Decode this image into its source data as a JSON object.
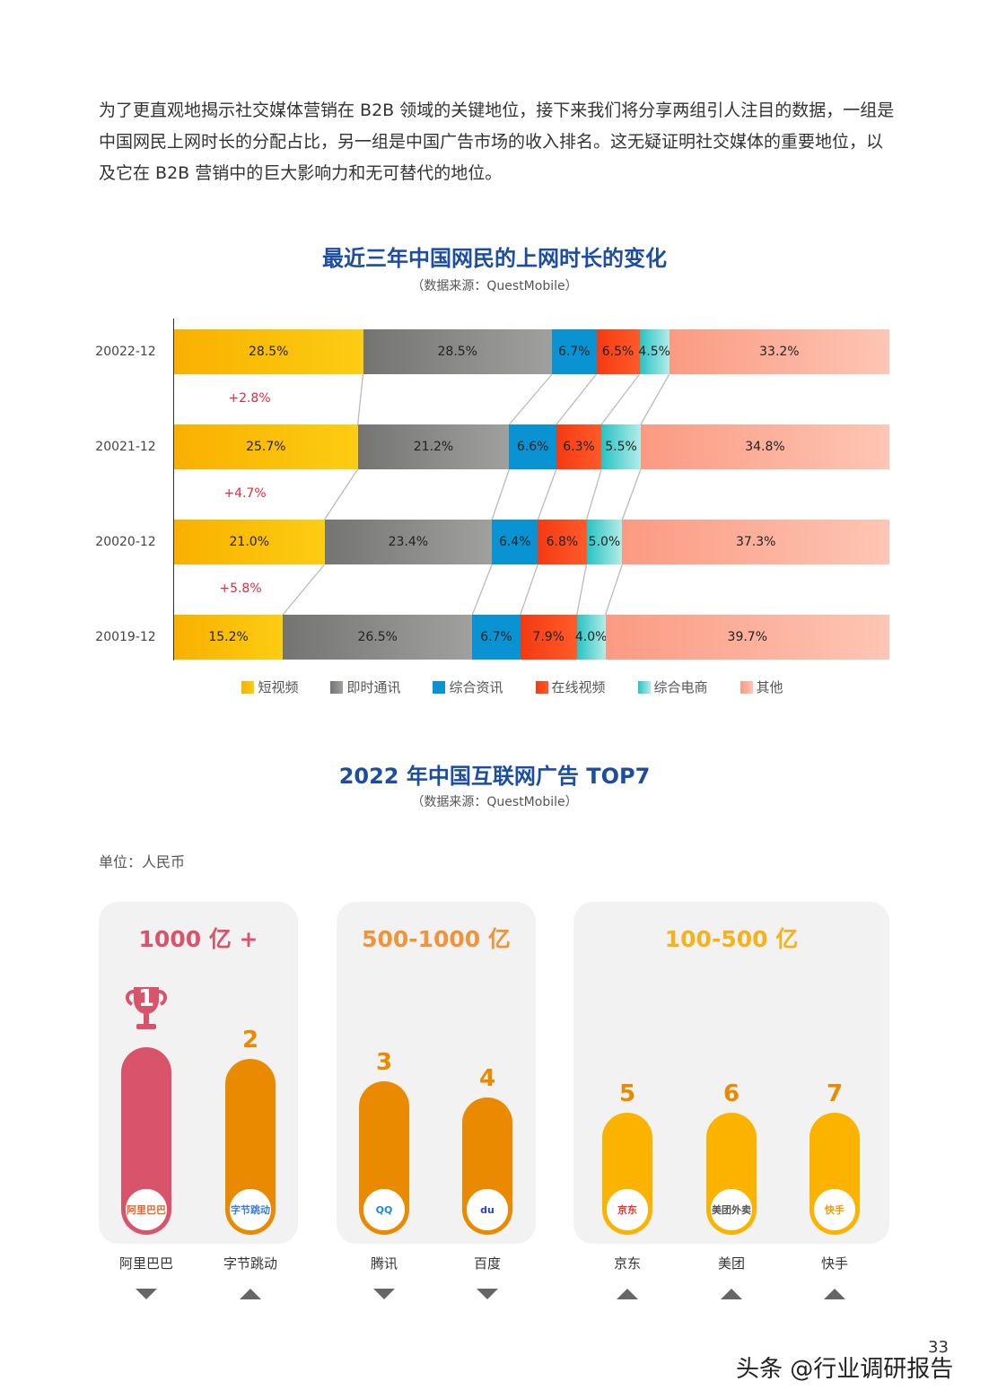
{
  "intro": "为了更直观地揭示社交媒体营销在 B2B 领域的关键地位，接下来我们将分享两组引人注目的数据，一组是中国网民上网时长的分配占比，另一组是中国广告市场的收入排名。这无疑证明社交媒体的重要地位，以及它在 B2B 营销中的巨大影响力和无可替代的地位。",
  "chart_data": {
    "type": "bar",
    "orientation": "horizontal-stacked",
    "title": "最近三年中国网民的上网时长的变化",
    "subtitle": "（数据来源：QuestMobile）",
    "categories": [
      "20022-12",
      "20021-12",
      "20020-12",
      "20019-12"
    ],
    "series": [
      {
        "name": "短视频",
        "values": [
          28.5,
          25.7,
          21.0,
          15.2
        ],
        "color": "#fbbd08"
      },
      {
        "name": "即时通讯",
        "values": [
          28.5,
          21.2,
          23.4,
          26.5
        ],
        "color": "#8a8a8a"
      },
      {
        "name": "综合资讯",
        "values": [
          6.7,
          6.6,
          6.4,
          6.7
        ],
        "color": "#0a93d2"
      },
      {
        "name": "在线视频",
        "values": [
          6.5,
          6.3,
          6.8,
          7.9
        ],
        "color": "#fa4518"
      },
      {
        "name": "综合电商",
        "values": [
          4.5,
          5.5,
          5.0,
          4.0
        ],
        "color": "#3ccfcc"
      },
      {
        "name": "其他",
        "values": [
          33.2,
          34.8,
          37.3,
          39.7
        ],
        "color": "#fcae98"
      }
    ],
    "changes": [
      "+2.8%",
      "+4.7%",
      "+5.8%"
    ],
    "legend": "bottom"
  },
  "ranking": {
    "title": "2022 年中国互联网广告 TOP7",
    "source": "（数据来源：QuestMobile）",
    "unit": "单位：人民币",
    "groups": [
      {
        "label": "1000 亿 +",
        "color": "#d9546b"
      },
      {
        "label": "500-1000 亿",
        "color": "#f0943a"
      },
      {
        "label": "100-500 亿",
        "color": "#f5b21a"
      }
    ],
    "companies": [
      {
        "rank": "1",
        "name": "阿里巴巴",
        "trend": "down",
        "logo": "阿里巴巴"
      },
      {
        "rank": "2",
        "name": "字节跳动",
        "trend": "up",
        "logo": "字节跳动"
      },
      {
        "rank": "3",
        "name": "腾讯",
        "trend": "down",
        "logo": "QQ"
      },
      {
        "rank": "4",
        "name": "百度",
        "trend": "down",
        "logo": "du"
      },
      {
        "rank": "5",
        "name": "京东",
        "trend": "up",
        "logo": "京东"
      },
      {
        "rank": "6",
        "name": "美团",
        "trend": "up",
        "logo": "美团外卖"
      },
      {
        "rank": "7",
        "name": "快手",
        "trend": "up",
        "logo": "快手"
      }
    ]
  },
  "page_number": "33",
  "watermark": "头条 @行业调研报告"
}
